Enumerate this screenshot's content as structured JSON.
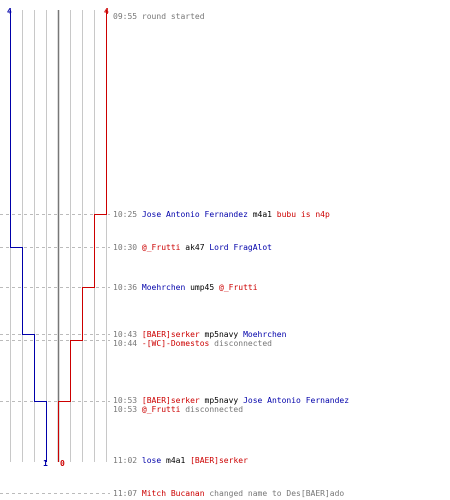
{
  "colors": {
    "blue": "#0000aa",
    "red": "#cc0000",
    "gray": "#777777",
    "black": "#000000"
  },
  "score_blue_start": "4",
  "score_red_start": "4",
  "score_blue_end": "1",
  "score_red_end": "0",
  "events": [
    {
      "time": "09:55",
      "parts": [
        {
          "text": "round started",
          "color": "gray"
        }
      ]
    },
    {
      "time": "10:25",
      "parts": [
        {
          "text": "Jose Antonio Fernandez",
          "color": "blue"
        },
        {
          "text": " m4a1 ",
          "color": "black"
        },
        {
          "text": "bubu is n4p",
          "color": "red"
        }
      ]
    },
    {
      "time": "10:30",
      "parts": [
        {
          "text": "@_Frutti",
          "color": "red"
        },
        {
          "text": " ak47 ",
          "color": "black"
        },
        {
          "text": "Lord FragAlot",
          "color": "blue"
        }
      ]
    },
    {
      "time": "10:36",
      "parts": [
        {
          "text": "Moehrchen",
          "color": "blue"
        },
        {
          "text": " ump45 ",
          "color": "black"
        },
        {
          "text": "@_Frutti",
          "color": "red"
        }
      ]
    },
    {
      "time": "10:43",
      "parts": [
        {
          "text": "[BAER]serker",
          "color": "red"
        },
        {
          "text": " mp5navy ",
          "color": "black"
        },
        {
          "text": "Moehrchen",
          "color": "blue"
        }
      ]
    },
    {
      "time": "10:44",
      "parts": [
        {
          "text": "-[WC]-Domestos",
          "color": "red"
        },
        {
          "text": " disconnected",
          "color": "gray"
        }
      ]
    },
    {
      "time": "10:53",
      "parts": [
        {
          "text": "[BAER]serker",
          "color": "red"
        },
        {
          "text": " mp5navy ",
          "color": "black"
        },
        {
          "text": "Jose Antonio Fernandez",
          "color": "blue"
        }
      ]
    },
    {
      "time": "10:53",
      "parts": [
        {
          "text": "@_Frutti",
          "color": "red"
        },
        {
          "text": " disconnected",
          "color": "gray"
        }
      ]
    },
    {
      "time": "11:02",
      "parts": [
        {
          "text": "lose",
          "color": "blue"
        },
        {
          "text": " m4a1 ",
          "color": "black"
        },
        {
          "text": "[BAER]serker",
          "color": "red"
        }
      ]
    },
    {
      "time": "11:07",
      "parts": [
        {
          "text": "Mitch Bucanan",
          "color": "red"
        },
        {
          "text": " changed name to Des[BAER]ado",
          "color": "gray"
        }
      ]
    }
  ]
}
